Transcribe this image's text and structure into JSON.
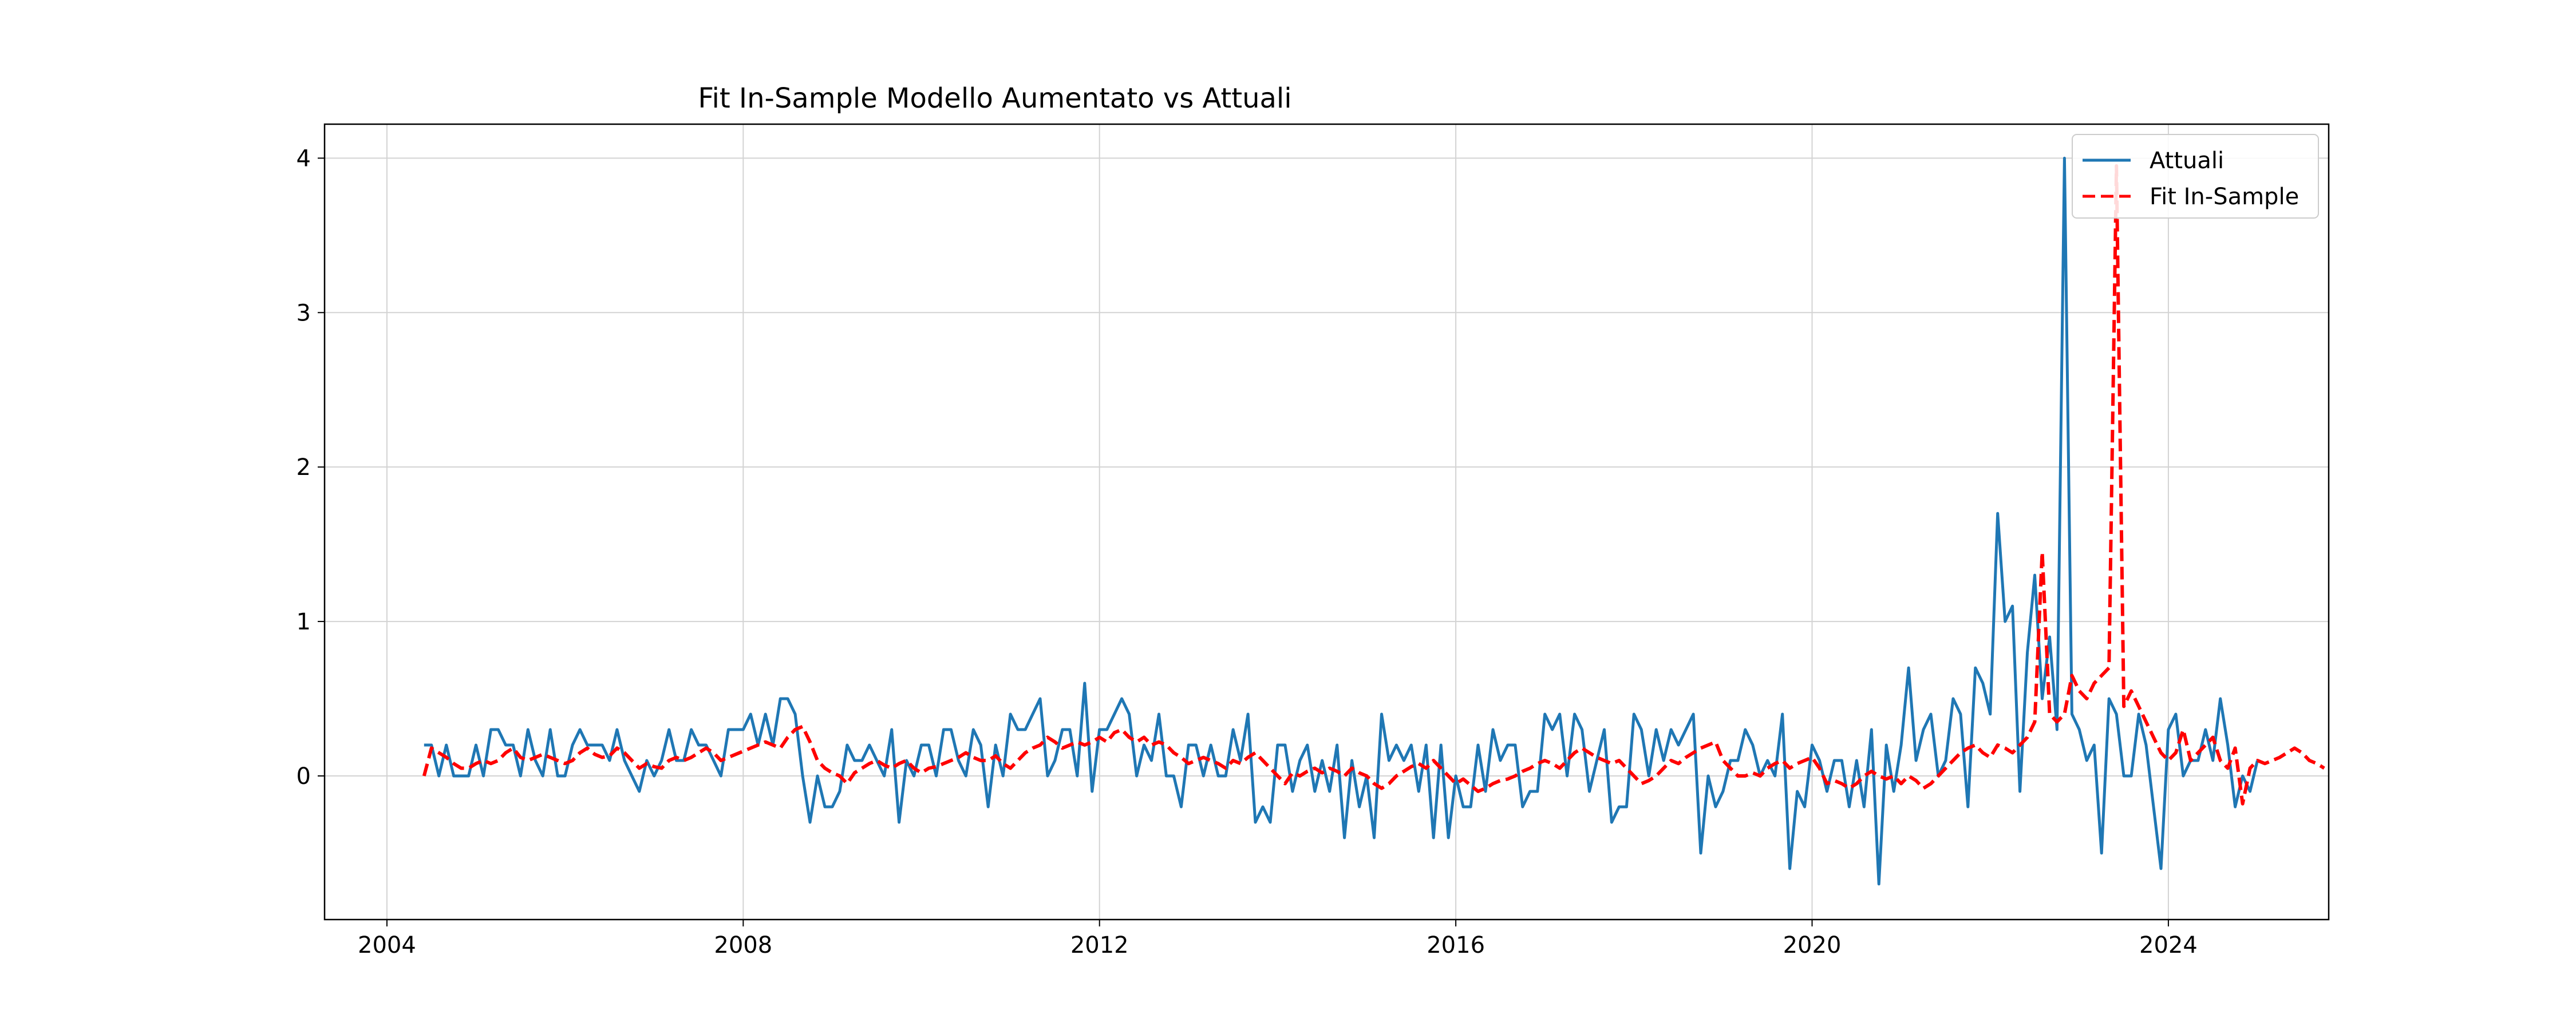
{
  "chart_data": {
    "type": "line",
    "title": "Fit In-Sample Modello Aumentato vs Attuali",
    "xlabel": "",
    "ylabel": "",
    "xlim": [
      2003.3,
      2025.8
    ],
    "ylim": [
      -0.93,
      4.22
    ],
    "x_ticks": [
      2004,
      2008,
      2012,
      2016,
      2020,
      2024
    ],
    "y_ticks": [
      0,
      1,
      2,
      3,
      4
    ],
    "grid": true,
    "legend_position": "top-right",
    "start_year": 2004,
    "start_month": 6,
    "series": [
      {
        "name": "Attuali",
        "color": "#1f77b4",
        "style": "solid",
        "values": [
          0.2,
          0.2,
          0.0,
          0.2,
          0.0,
          0.0,
          0.0,
          0.2,
          0.0,
          0.3,
          0.3,
          0.2,
          0.2,
          0.0,
          0.3,
          0.1,
          0.0,
          0.3,
          0.0,
          0.0,
          0.2,
          0.3,
          0.2,
          0.2,
          0.2,
          0.1,
          0.3,
          0.1,
          0.0,
          -0.1,
          0.1,
          0.0,
          0.1,
          0.3,
          0.1,
          0.1,
          0.3,
          0.2,
          0.2,
          0.1,
          0.0,
          0.3,
          0.3,
          0.3,
          0.4,
          0.2,
          0.4,
          0.2,
          0.5,
          0.5,
          0.4,
          0.0,
          -0.3,
          0.0,
          -0.2,
          -0.2,
          -0.1,
          0.2,
          0.1,
          0.1,
          0.2,
          0.1,
          0.0,
          0.3,
          -0.3,
          0.1,
          0.0,
          0.2,
          0.2,
          0.0,
          0.3,
          0.3,
          0.1,
          0.0,
          0.3,
          0.2,
          -0.2,
          0.2,
          0.0,
          0.4,
          0.3,
          0.3,
          0.4,
          0.5,
          0.0,
          0.1,
          0.3,
          0.3,
          0.0,
          0.6,
          -0.1,
          0.3,
          0.3,
          0.4,
          0.5,
          0.4,
          0.0,
          0.2,
          0.1,
          0.4,
          0.0,
          0.0,
          -0.2,
          0.2,
          0.2,
          0.0,
          0.2,
          0.0,
          0.0,
          0.3,
          0.1,
          0.4,
          -0.3,
          -0.2,
          -0.3,
          0.2,
          0.2,
          -0.1,
          0.1,
          0.2,
          -0.1,
          0.1,
          -0.1,
          0.2,
          -0.4,
          0.1,
          -0.2,
          0.0,
          -0.4,
          0.4,
          0.1,
          0.2,
          0.1,
          0.2,
          -0.1,
          0.2,
          -0.4,
          0.2,
          -0.4,
          0.0,
          -0.2,
          -0.2,
          0.2,
          -0.1,
          0.3,
          0.1,
          0.2,
          0.2,
          -0.2,
          -0.1,
          -0.1,
          0.4,
          0.3,
          0.4,
          0.0,
          0.4,
          0.3,
          -0.1,
          0.1,
          0.3,
          -0.3,
          -0.2,
          -0.2,
          0.4,
          0.3,
          0.0,
          0.3,
          0.1,
          0.3,
          0.2,
          0.3,
          0.4,
          -0.5,
          0.0,
          -0.2,
          -0.1,
          0.1,
          0.1,
          0.3,
          0.2,
          0.0,
          0.1,
          0.0,
          0.4,
          -0.6,
          -0.1,
          -0.2,
          0.2,
          0.1,
          -0.1,
          0.1,
          0.1,
          -0.2,
          0.1,
          -0.2,
          0.3,
          -0.7,
          0.2,
          -0.1,
          0.2,
          0.7,
          0.1,
          0.3,
          0.4,
          0.0,
          0.1,
          0.5,
          0.4,
          -0.2,
          0.7,
          0.6,
          0.4,
          1.7,
          1.0,
          1.1,
          -0.1,
          0.8,
          1.3,
          0.5,
          0.9,
          0.3,
          4.0,
          0.4,
          0.3,
          0.1,
          0.2,
          -0.5,
          0.5,
          0.4,
          0.0,
          0.0,
          0.4,
          0.2,
          -0.2,
          -0.6,
          0.3,
          0.4,
          0.0,
          0.1,
          0.1,
          0.3,
          0.1,
          0.5,
          0.2,
          -0.2,
          0.0,
          -0.1,
          0.1
        ]
      },
      {
        "name": "Fit In-Sample",
        "color": "#ff0000",
        "style": "dashed",
        "values": [
          0.0,
          0.18,
          0.15,
          0.12,
          0.08,
          0.05,
          0.05,
          0.08,
          0.1,
          0.08,
          0.1,
          0.15,
          0.18,
          0.12,
          0.1,
          0.12,
          0.14,
          0.12,
          0.1,
          0.08,
          0.1,
          0.15,
          0.18,
          0.14,
          0.12,
          0.13,
          0.18,
          0.15,
          0.1,
          0.05,
          0.08,
          0.06,
          0.05,
          0.1,
          0.12,
          0.1,
          0.12,
          0.15,
          0.18,
          0.15,
          0.1,
          0.12,
          0.14,
          0.16,
          0.18,
          0.2,
          0.22,
          0.2,
          0.18,
          0.25,
          0.3,
          0.32,
          0.22,
          0.1,
          0.05,
          0.02,
          0.0,
          -0.05,
          0.02,
          0.05,
          0.08,
          0.1,
          0.07,
          0.05,
          0.08,
          0.1,
          0.05,
          0.02,
          0.05,
          0.06,
          0.08,
          0.1,
          0.12,
          0.15,
          0.12,
          0.1,
          0.1,
          0.13,
          0.08,
          0.05,
          0.1,
          0.15,
          0.18,
          0.2,
          0.25,
          0.22,
          0.18,
          0.2,
          0.22,
          0.2,
          0.22,
          0.25,
          0.22,
          0.28,
          0.3,
          0.25,
          0.22,
          0.25,
          0.2,
          0.22,
          0.2,
          0.15,
          0.12,
          0.08,
          0.1,
          0.12,
          0.1,
          0.08,
          0.05,
          0.1,
          0.08,
          0.12,
          0.15,
          0.1,
          0.05,
          0.0,
          -0.05,
          0.02,
          0.0,
          0.03,
          0.05,
          0.02,
          0.05,
          0.03,
          0.0,
          0.05,
          0.02,
          0.0,
          -0.05,
          -0.08,
          -0.05,
          0.0,
          0.03,
          0.06,
          0.08,
          0.05,
          0.1,
          0.05,
          0.0,
          -0.05,
          -0.02,
          -0.06,
          -0.1,
          -0.08,
          -0.05,
          -0.03,
          -0.02,
          0.0,
          0.03,
          0.05,
          0.08,
          0.1,
          0.08,
          0.05,
          0.1,
          0.15,
          0.18,
          0.15,
          0.12,
          0.1,
          0.08,
          0.1,
          0.05,
          0.0,
          -0.05,
          -0.03,
          0.0,
          0.05,
          0.1,
          0.08,
          0.12,
          0.15,
          0.18,
          0.2,
          0.22,
          0.1,
          0.05,
          0.0,
          0.0,
          0.02,
          0.0,
          0.05,
          0.08,
          0.1,
          0.05,
          0.08,
          0.1,
          0.12,
          0.05,
          -0.05,
          -0.03,
          -0.05,
          -0.08,
          -0.05,
          0.0,
          0.03,
          0.0,
          -0.02,
          0.0,
          -0.05,
          0.0,
          -0.03,
          -0.08,
          -0.05,
          0.0,
          0.05,
          0.1,
          0.15,
          0.18,
          0.2,
          0.15,
          0.12,
          0.2,
          0.18,
          0.15,
          0.2,
          0.25,
          0.35,
          1.45,
          0.4,
          0.35,
          0.4,
          0.65,
          0.55,
          0.5,
          0.6,
          0.65,
          0.7,
          3.95,
          0.45,
          0.55,
          0.45,
          0.35,
          0.25,
          0.15,
          0.1,
          0.15,
          0.3,
          0.1,
          0.15,
          0.2,
          0.25,
          0.1,
          0.05,
          0.18,
          -0.18,
          0.05,
          0.1,
          0.08,
          0.1,
          0.12,
          0.15,
          0.18,
          0.15,
          0.1,
          0.08,
          0.05
        ]
      }
    ]
  }
}
